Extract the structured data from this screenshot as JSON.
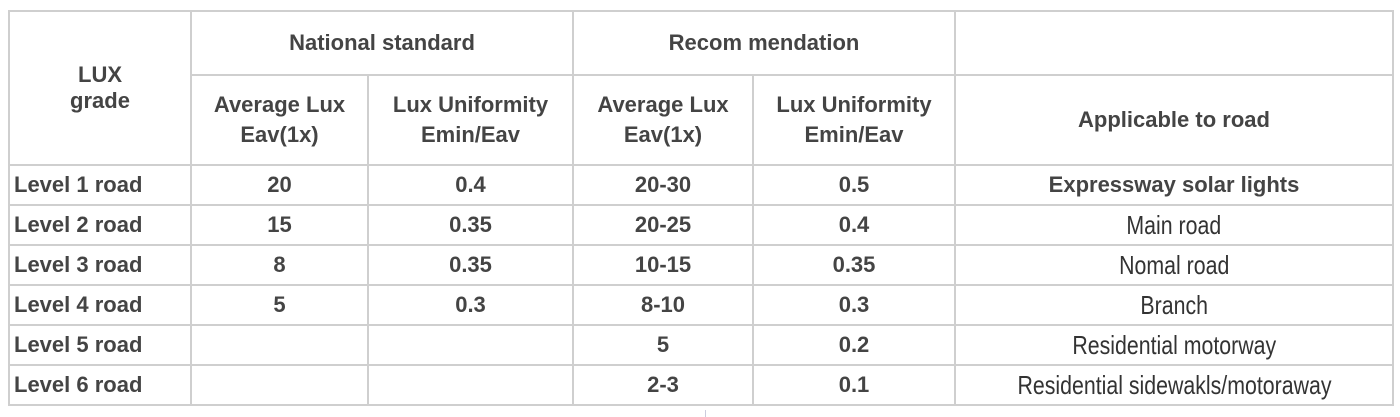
{
  "headers": {
    "grade": [
      "LUX",
      "grade"
    ],
    "national": "National standard",
    "recommendation": "Recom mendation",
    "avg_lux": [
      "Average Lux",
      "Eav(1x)"
    ],
    "uniformity": [
      "Lux Uniformity",
      "Emin/Eav"
    ],
    "applicable": "Applicable to road"
  },
  "rows": [
    {
      "level": "Level 1 road",
      "nat_avg": "20",
      "nat_uni": "0.4",
      "rec_avg": "20-30",
      "rec_uni": "0.5",
      "road": "Expressway solar lights"
    },
    {
      "level": "Level 2 road",
      "nat_avg": "15",
      "nat_uni": "0.35",
      "rec_avg": "20-25",
      "rec_uni": "0.4",
      "road": "Main road"
    },
    {
      "level": "Level 3 road",
      "nat_avg": "8",
      "nat_uni": "0.35",
      "rec_avg": "10-15",
      "rec_uni": "0.35",
      "road": "Nomal road"
    },
    {
      "level": "Level 4 road",
      "nat_avg": "5",
      "nat_uni": "0.3",
      "rec_avg": "8-10",
      "rec_uni": "0.3",
      "road": "Branch"
    },
    {
      "level": "Level 5 road",
      "nat_avg": "",
      "nat_uni": "",
      "rec_avg": "5",
      "rec_uni": "0.2",
      "road": "Residential motorway"
    },
    {
      "level": "Level 6 road",
      "nat_avg": "",
      "nat_uni": "",
      "rec_avg": "2-3",
      "rec_uni": "0.1",
      "road": "Residential sidewakls/motoraway"
    }
  ]
}
